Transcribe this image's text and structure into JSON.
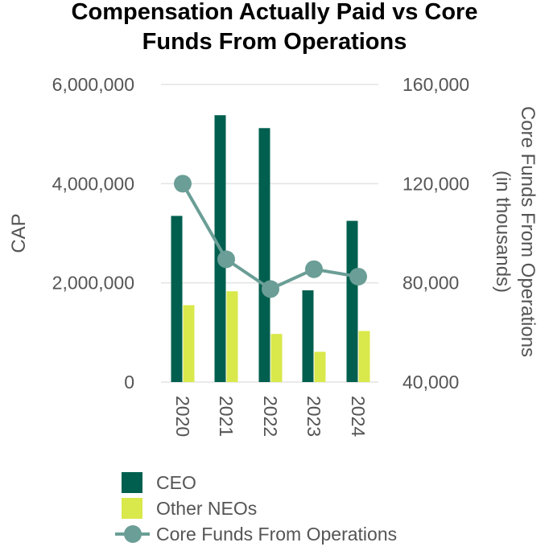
{
  "chart_data": {
    "type": "bar",
    "title_line1": "Compensation Actually Paid vs Core",
    "title_line2": "Funds From Operations",
    "categories": [
      "2020",
      "2021",
      "2022",
      "2023",
      "2024"
    ],
    "ylabel": "CAP",
    "y2label_line1": "Core Funds From Operations",
    "y2label_line2": "(in thousands)",
    "ylim": [
      0,
      6000000
    ],
    "y2lim": [
      40000,
      160000
    ],
    "yticks": [
      "0",
      "2,000,000",
      "4,000,000",
      "6,000,000"
    ],
    "y2ticks": [
      "40,000",
      "80,000",
      "120,000",
      "160,000"
    ],
    "grid": true,
    "legend_position": "bottom",
    "series": [
      {
        "name": "CEO",
        "type": "bar",
        "axis": "left",
        "color": "#005f4e",
        "values": [
          3350000,
          5380000,
          5120000,
          1850000,
          3250000
        ]
      },
      {
        "name": "Other NEOs",
        "type": "bar",
        "axis": "left",
        "color": "#d9e84a",
        "values": [
          1550000,
          1830000,
          970000,
          610000,
          1030000
        ]
      },
      {
        "name": "Core Funds From Operations",
        "type": "line",
        "axis": "right",
        "color": "#6a9e96",
        "values": [
          120000,
          89500,
          77500,
          85500,
          82500
        ]
      }
    ]
  }
}
